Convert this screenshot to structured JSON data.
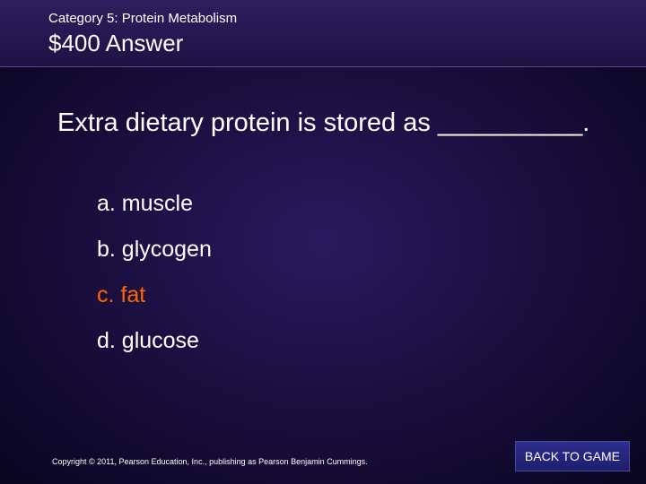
{
  "header": {
    "category": "Category 5: Protein Metabolism",
    "value_answer": "$400 Answer"
  },
  "question": "Extra dietary protein is stored as __________.",
  "options": {
    "a": {
      "text": "a. muscle",
      "correct": false
    },
    "b": {
      "text": "b. glycogen",
      "correct": false
    },
    "c": {
      "text": "c. fat",
      "correct": true
    },
    "d": {
      "text": "d. glucose",
      "correct": false
    }
  },
  "footer": {
    "copyright": "Copyright © 2011, Pearson Education, Inc., publishing as Pearson Benjamin Cummings.",
    "back_label": "BACK TO GAME"
  },
  "styling": {
    "background_gradient": {
      "center": "#2a1a5e",
      "mid": "#1a0e3e",
      "edge": "#0a0520"
    },
    "header_bg_top": "#2e1e5e",
    "header_bg_bottom": "#1e1244",
    "text_color": "#ffffff",
    "correct_color": "#ff6600",
    "button_bg_top": "#2e2e8e",
    "button_bg_bottom": "#1e1e6e",
    "category_fontsize": 15,
    "value_fontsize": 26,
    "question_fontsize": 29,
    "option_fontsize": 25,
    "copyright_fontsize": 9,
    "button_fontsize": 14
  }
}
